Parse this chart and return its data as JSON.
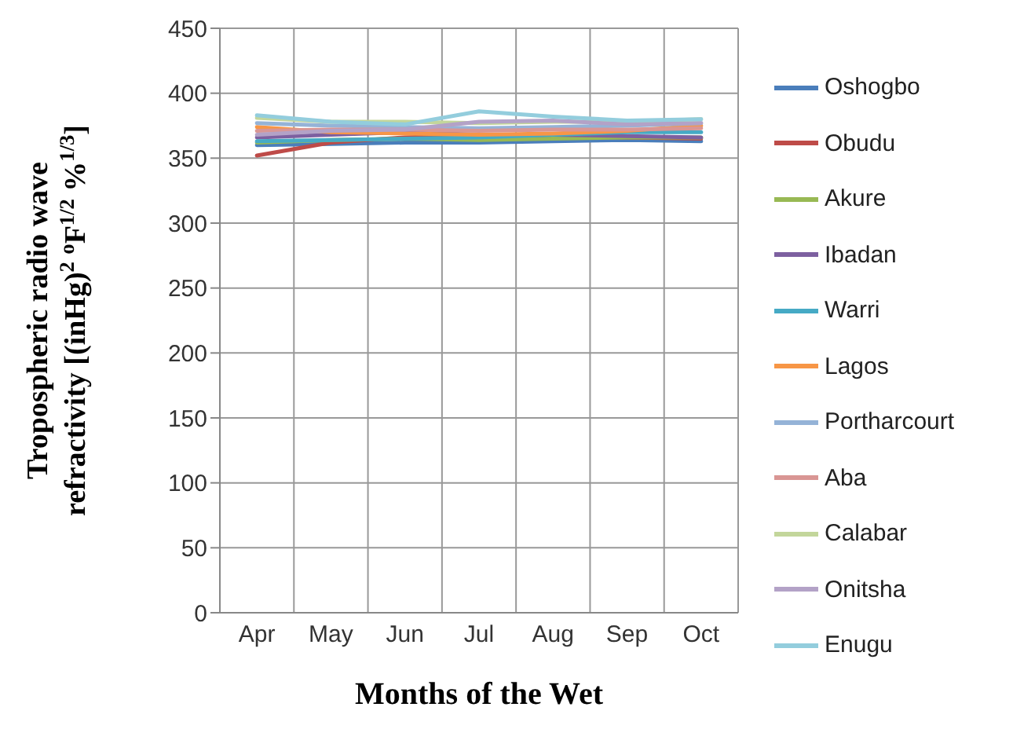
{
  "chart_data": {
    "type": "line",
    "xlabel": "Months of the Wet",
    "ylabel": "Tropospheric radio wave\nrefractivity [(inHg)$^{2}$ $^{o}$F$^{1/2}$ %$^{1/3}$]",
    "categories": [
      "Apr",
      "May",
      "Jun",
      "Jul",
      "Aug",
      "Sep",
      "Oct"
    ],
    "ylim": [
      0,
      450
    ],
    "yticks": [
      0,
      50,
      100,
      150,
      200,
      250,
      300,
      350,
      400,
      450
    ],
    "grid": true,
    "legend": "right",
    "marker": "none",
    "line_style": "solid",
    "series": [
      {
        "name": "Oshogbo",
        "color": "#4a7ebb",
        "values": [
          360,
          361,
          362,
          362,
          363,
          364,
          363
        ]
      },
      {
        "name": "Obudu",
        "color": "#be4b48",
        "values": [
          352,
          362,
          366,
          368,
          367,
          366,
          365
        ]
      },
      {
        "name": "Akure",
        "color": "#98b954",
        "values": [
          362,
          364,
          365,
          364,
          365,
          366,
          366
        ]
      },
      {
        "name": "Ibadan",
        "color": "#7d60a0",
        "values": [
          366,
          368,
          370,
          368,
          368,
          367,
          366
        ]
      },
      {
        "name": "Warri",
        "color": "#46aac5",
        "values": [
          363,
          364,
          365,
          366,
          368,
          370,
          370
        ]
      },
      {
        "name": "Lagos",
        "color": "#f79646",
        "values": [
          374,
          370,
          369,
          368,
          369,
          371,
          375
        ]
      },
      {
        "name": "Portharcourt",
        "color": "#95b3d7",
        "values": [
          377,
          375,
          374,
          373,
          374,
          375,
          377
        ]
      },
      {
        "name": "Aba",
        "color": "#d99694",
        "values": [
          371,
          372,
          372,
          371,
          372,
          372,
          373
        ]
      },
      {
        "name": "Calabar",
        "color": "#c3d69b",
        "values": [
          381,
          378,
          378,
          377,
          378,
          378,
          380
        ]
      },
      {
        "name": "Onitsha",
        "color": "#b3a2c7",
        "values": [
          368,
          371,
          372,
          378,
          379,
          376,
          377
        ]
      },
      {
        "name": "Enugu",
        "color": "#93cddd",
        "values": [
          383,
          378,
          376,
          386,
          382,
          379,
          380
        ]
      }
    ]
  }
}
